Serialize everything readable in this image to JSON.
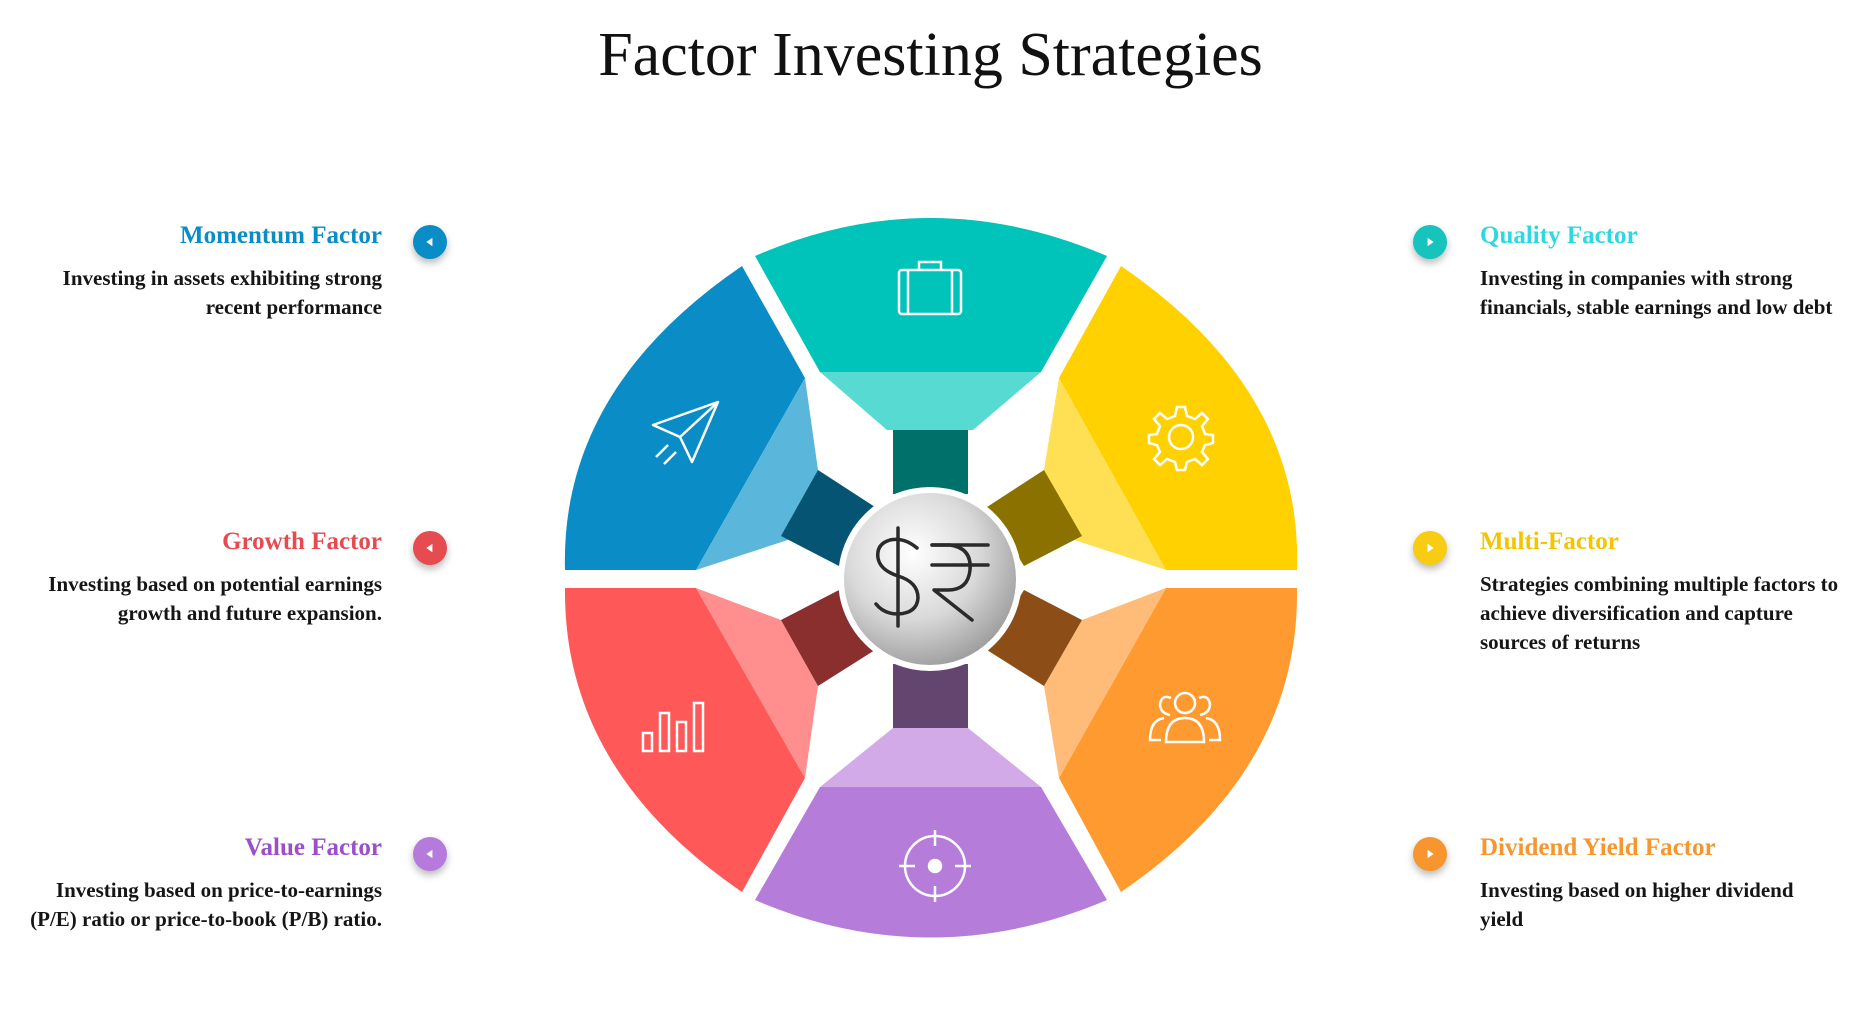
{
  "title": "Factor Investing Strategies",
  "factors": [
    {
      "id": "momentum",
      "title": "Momentum Factor",
      "desc": "Investing in assets exhibiting strong recent performance",
      "color": "#0A8DC6",
      "icon": "paper-plane-icon",
      "side": "left"
    },
    {
      "id": "growth",
      "title": "Growth Factor",
      "desc": "Investing based on potential earnings growth and future expansion.",
      "color": "#E54B4F",
      "icon": "bar-chart-icon",
      "side": "left"
    },
    {
      "id": "value",
      "title": "Value Factor",
      "desc": "Investing based on price-to-earnings (P/E) ratio or price-to-book (P/B) ratio.",
      "color": "#9B4FC9",
      "icon": "target-icon",
      "side": "left"
    },
    {
      "id": "quality",
      "title": "Quality Factor",
      "desc": "Investing in companies with strong financials, stable earnings and low debt",
      "color": "#2ED8E0",
      "icon": "briefcase-icon",
      "side": "right"
    },
    {
      "id": "multi",
      "title": "Multi-Factor",
      "desc": "Strategies combining multiple factors to achieve diversification and capture sources of returns",
      "color": "#F2C500",
      "icon": "gear-icon",
      "side": "right"
    },
    {
      "id": "dividend",
      "title": "Dividend Yield Factor",
      "desc": "Investing based on higher dividend yield",
      "color": "#F5962E",
      "icon": "users-icon",
      "side": "right"
    }
  ],
  "center": {
    "symbols": "$₹",
    "icon": "currency-dollar-rupee-icon"
  }
}
